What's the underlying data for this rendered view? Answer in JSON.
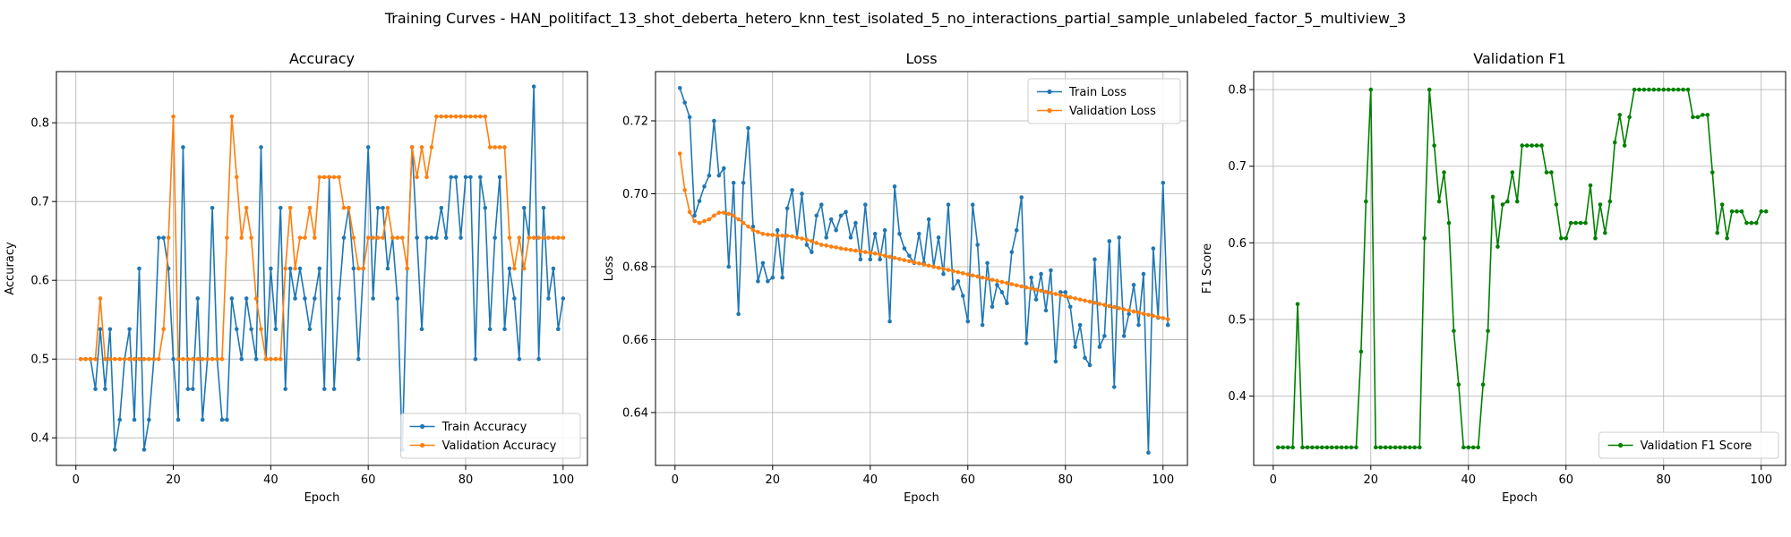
{
  "figure": {
    "title": "Training Curves - HAN_politifact_13_shot_deberta_hetero_knn_test_isolated_5_no_interactions_partial_sample_unlabeled_factor_5_multiview_3"
  },
  "colors": {
    "blue": "#1f77b4",
    "orange": "#ff7f0e",
    "green": "#008000",
    "grid": "#b0b0b0"
  },
  "chart_data": [
    {
      "type": "line",
      "title": "Accuracy",
      "xlabel": "Epoch",
      "ylabel": "Accuracy",
      "xlim": [
        -4,
        105
      ],
      "ylim": [
        0.365,
        0.865
      ],
      "xticks": [
        0,
        20,
        40,
        60,
        80,
        100
      ],
      "yticks": [
        0.4,
        0.5,
        0.6,
        0.7,
        0.8
      ],
      "ytick_labels": [
        "0.4",
        "0.5",
        "0.6",
        "0.7",
        "0.8"
      ],
      "grid": true,
      "legend": "lower-right",
      "x_start": 1,
      "series": [
        {
          "name": "Train Accuracy",
          "color": "#1f77b4",
          "values": [
            0.5,
            0.5,
            0.5,
            0.462,
            0.538,
            0.462,
            0.538,
            0.385,
            0.423,
            0.5,
            0.538,
            0.423,
            0.615,
            0.385,
            0.423,
            0.5,
            0.654,
            0.654,
            0.615,
            0.5,
            0.423,
            0.769,
            0.462,
            0.462,
            0.577,
            0.423,
            0.5,
            0.692,
            0.5,
            0.423,
            0.423,
            0.577,
            0.538,
            0.5,
            0.577,
            0.538,
            0.5,
            0.769,
            0.5,
            0.615,
            0.538,
            0.692,
            0.462,
            0.615,
            0.577,
            0.615,
            0.577,
            0.538,
            0.577,
            0.615,
            0.462,
            0.731,
            0.462,
            0.577,
            0.654,
            0.692,
            0.615,
            0.5,
            0.615,
            0.769,
            0.577,
            0.692,
            0.692,
            0.615,
            0.654,
            0.577,
            0.385,
            0.615,
            0.769,
            0.654,
            0.538,
            0.654,
            0.654,
            0.654,
            0.692,
            0.654,
            0.731,
            0.731,
            0.654,
            0.731,
            0.731,
            0.5,
            0.731,
            0.692,
            0.538,
            0.654,
            0.731,
            0.538,
            0.615,
            0.577,
            0.5,
            0.692,
            0.654,
            0.846,
            0.5,
            0.692,
            0.577,
            0.615,
            0.538,
            0.577
          ]
        },
        {
          "name": "Validation Accuracy",
          "color": "#ff7f0e",
          "values": [
            0.5,
            0.5,
            0.5,
            0.5,
            0.577,
            0.5,
            0.5,
            0.5,
            0.5,
            0.5,
            0.5,
            0.5,
            0.5,
            0.5,
            0.5,
            0.5,
            0.5,
            0.538,
            0.654,
            0.808,
            0.5,
            0.5,
            0.5,
            0.5,
            0.5,
            0.5,
            0.5,
            0.5,
            0.5,
            0.5,
            0.654,
            0.808,
            0.731,
            0.654,
            0.692,
            0.654,
            0.577,
            0.538,
            0.5,
            0.5,
            0.5,
            0.5,
            0.615,
            0.692,
            0.615,
            0.654,
            0.654,
            0.692,
            0.654,
            0.731,
            0.731,
            0.731,
            0.731,
            0.731,
            0.692,
            0.692,
            0.654,
            0.615,
            0.615,
            0.654,
            0.654,
            0.654,
            0.654,
            0.692,
            0.654,
            0.654,
            0.654,
            0.615,
            0.769,
            0.731,
            0.769,
            0.731,
            0.769,
            0.808,
            0.808,
            0.808,
            0.808,
            0.808,
            0.808,
            0.808,
            0.808,
            0.808,
            0.808,
            0.808,
            0.769,
            0.769,
            0.769,
            0.769,
            0.654,
            0.615,
            0.654,
            0.615,
            0.654,
            0.654,
            0.654,
            0.654,
            0.654,
            0.654,
            0.654,
            0.654
          ]
        }
      ]
    },
    {
      "type": "line",
      "title": "Loss",
      "xlabel": "Epoch",
      "ylabel": "Loss",
      "xlim": [
        -4,
        105
      ],
      "ylim": [
        0.6255,
        0.7335
      ],
      "xticks": [
        0,
        20,
        40,
        60,
        80,
        100
      ],
      "yticks": [
        0.64,
        0.66,
        0.68,
        0.7,
        0.72
      ],
      "ytick_labels": [
        "0.64",
        "0.66",
        "0.68",
        "0.70",
        "0.72"
      ],
      "grid": true,
      "legend": "upper-right",
      "x_start": 1,
      "series": [
        {
          "name": "Train Loss",
          "color": "#1f77b4",
          "values": [
            0.729,
            0.725,
            0.721,
            0.694,
            0.698,
            0.702,
            0.705,
            0.72,
            0.705,
            0.707,
            0.68,
            0.703,
            0.667,
            0.703,
            0.718,
            0.691,
            0.676,
            0.681,
            0.676,
            0.677,
            0.69,
            0.677,
            0.696,
            0.701,
            0.688,
            0.7,
            0.686,
            0.684,
            0.694,
            0.697,
            0.688,
            0.693,
            0.69,
            0.694,
            0.695,
            0.688,
            0.692,
            0.682,
            0.697,
            0.682,
            0.689,
            0.682,
            0.69,
            0.665,
            0.702,
            0.689,
            0.685,
            0.683,
            0.681,
            0.689,
            0.681,
            0.693,
            0.68,
            0.688,
            0.678,
            0.697,
            0.674,
            0.676,
            0.672,
            0.665,
            0.697,
            0.686,
            0.664,
            0.681,
            0.669,
            0.675,
            0.673,
            0.67,
            0.684,
            0.69,
            0.699,
            0.659,
            0.677,
            0.671,
            0.678,
            0.668,
            0.679,
            0.654,
            0.673,
            0.673,
            0.669,
            0.658,
            0.664,
            0.655,
            0.653,
            0.682,
            0.658,
            0.661,
            0.687,
            0.647,
            0.688,
            0.661,
            0.667,
            0.675,
            0.664,
            0.678,
            0.629,
            0.685,
            0.666,
            0.703,
            0.664
          ]
        },
        {
          "name": "Validation Loss",
          "color": "#ff7f0e",
          "values": [
            0.711,
            0.701,
            0.695,
            0.6925,
            0.692,
            0.6925,
            0.693,
            0.694,
            0.6948,
            0.6948,
            0.6945,
            0.694,
            0.693,
            0.692,
            0.691,
            0.69,
            0.6895,
            0.689,
            0.6888,
            0.6887,
            0.6885,
            0.6885,
            0.6885,
            0.6883,
            0.688,
            0.6877,
            0.6874,
            0.687,
            0.6865,
            0.686,
            0.6858,
            0.6855,
            0.6853,
            0.685,
            0.6848,
            0.6846,
            0.6844,
            0.6842,
            0.684,
            0.6838,
            0.6836,
            0.6833,
            0.683,
            0.6827,
            0.6824,
            0.6821,
            0.6818,
            0.6815,
            0.6812,
            0.6809,
            0.6806,
            0.6803,
            0.68,
            0.6797,
            0.6794,
            0.6791,
            0.6788,
            0.6785,
            0.6782,
            0.6779,
            0.6776,
            0.6773,
            0.677,
            0.6767,
            0.6764,
            0.6761,
            0.6758,
            0.6755,
            0.6752,
            0.6749,
            0.6746,
            0.6743,
            0.674,
            0.6737,
            0.6734,
            0.6731,
            0.6728,
            0.6725,
            0.6722,
            0.6719,
            0.6716,
            0.6713,
            0.671,
            0.6707,
            0.6704,
            0.6701,
            0.6698,
            0.6695,
            0.6692,
            0.6689,
            0.6686,
            0.6683,
            0.668,
            0.6677,
            0.6674,
            0.6671,
            0.6668,
            0.6665,
            0.6662,
            0.6659,
            0.6656
          ]
        }
      ]
    },
    {
      "type": "line",
      "title": "Validation F1",
      "xlabel": "Epoch",
      "ylabel": "F1 Score",
      "xlim": [
        -4,
        105
      ],
      "ylim": [
        0.3095,
        0.8235
      ],
      "xticks": [
        0,
        20,
        40,
        60,
        80,
        100
      ],
      "yticks": [
        0.4,
        0.5,
        0.6,
        0.7,
        0.8
      ],
      "ytick_labels": [
        "0.4",
        "0.5",
        "0.6",
        "0.7",
        "0.8"
      ],
      "grid": true,
      "legend": "lower-right",
      "x_start": 1,
      "series": [
        {
          "name": "Validation F1 Score",
          "color": "#008000",
          "values": [
            0.333,
            0.333,
            0.333,
            0.333,
            0.52,
            0.333,
            0.333,
            0.333,
            0.333,
            0.333,
            0.333,
            0.333,
            0.333,
            0.333,
            0.333,
            0.333,
            0.333,
            0.458,
            0.654,
            0.8,
            0.333,
            0.333,
            0.333,
            0.333,
            0.333,
            0.333,
            0.333,
            0.333,
            0.333,
            0.333,
            0.606,
            0.8,
            0.727,
            0.654,
            0.692,
            0.626,
            0.485,
            0.415,
            0.333,
            0.333,
            0.333,
            0.333,
            0.415,
            0.485,
            0.66,
            0.595,
            0.65,
            0.654,
            0.692,
            0.654,
            0.727,
            0.727,
            0.727,
            0.727,
            0.727,
            0.692,
            0.692,
            0.65,
            0.606,
            0.606,
            0.626,
            0.626,
            0.626,
            0.626,
            0.675,
            0.606,
            0.65,
            0.613,
            0.654,
            0.731,
            0.767,
            0.727,
            0.764,
            0.8,
            0.8,
            0.8,
            0.8,
            0.8,
            0.8,
            0.8,
            0.8,
            0.8,
            0.8,
            0.8,
            0.8,
            0.764,
            0.764,
            0.767,
            0.767,
            0.692,
            0.613,
            0.65,
            0.606,
            0.641,
            0.641,
            0.641,
            0.626,
            0.626,
            0.626,
            0.641,
            0.641
          ]
        }
      ]
    }
  ]
}
